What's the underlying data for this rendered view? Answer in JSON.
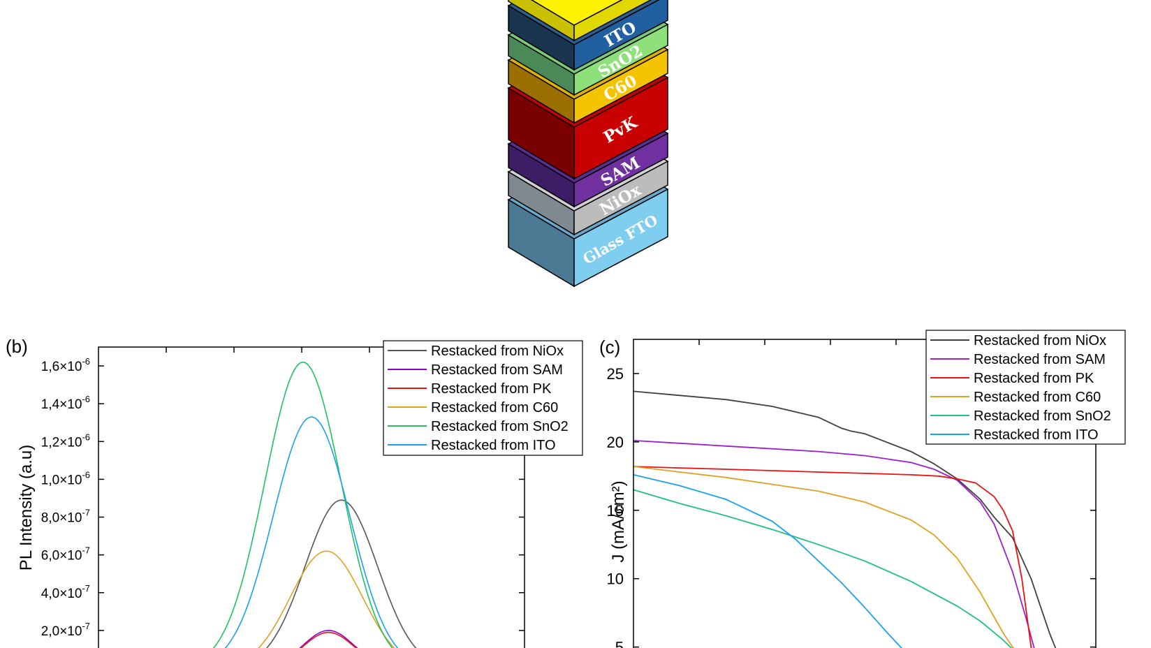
{
  "stack": {
    "layers": [
      {
        "label": "",
        "top": "#fff200",
        "left": "#c8c000",
        "front": "#e0d800"
      },
      {
        "label": "ITO",
        "top": "#2d5f8f",
        "left": "#1a3550",
        "front": "#2060a0"
      },
      {
        "label": "SnO2",
        "top": "#7cc97a",
        "left": "#4b8a58",
        "front": "#8ee07a"
      },
      {
        "label": "C60",
        "top": "#e2b200",
        "left": "#9b7000",
        "front": "#f5c400"
      },
      {
        "label": "PvK",
        "top": "#c40000",
        "left": "#7a0000",
        "front": "#c80000"
      },
      {
        "label": "SAM",
        "top": "#5a2d91",
        "left": "#3c1d66",
        "front": "#7030a0"
      },
      {
        "label": "NiOx",
        "top": "#d0d0d0",
        "left": "#808890",
        "front": "#bcbcbc"
      },
      {
        "label": "Glass FTO",
        "top": "#6aa7c8",
        "left": "#4a7a94",
        "front": "#7fcdef"
      }
    ]
  },
  "panel_b": {
    "label": "(b)"
  },
  "panel_c": {
    "label": "(c)"
  },
  "chart_data": [
    {
      "type": "line",
      "panel": "(b)",
      "ylabel": "PL Intensity (a.u)",
      "xlabel": "",
      "ylim": [
        0,
        1.7e-06
      ],
      "yticks": [
        2e-07,
        4e-07,
        6e-07,
        8e-07,
        1e-06,
        1.2e-06,
        1.4e-06,
        1.6e-06
      ],
      "ytick_labels": [
        {
          "mant": "2,0",
          "exp": "-7"
        },
        {
          "mant": "4,0",
          "exp": "-7"
        },
        {
          "mant": "6,0",
          "exp": "-7"
        },
        {
          "mant": "8,0",
          "exp": "-7"
        },
        {
          "mant": "1,0",
          "exp": "-6"
        },
        {
          "mant": "1,2",
          "exp": "-6"
        },
        {
          "mant": "1,4",
          "exp": "-6"
        },
        {
          "mant": "1,6",
          "exp": "-6"
        }
      ],
      "legend_position": "top-right",
      "series": [
        {
          "name": "Restacked from NiOx",
          "color": "#555555",
          "peak_x": 0.57,
          "peak": 8.9e-07,
          "width": 0.085
        },
        {
          "name": "Restacked from SAM",
          "color": "#8b00d0",
          "peak_x": 0.54,
          "peak": 2e-07,
          "width": 0.06
        },
        {
          "name": "Restacked from PK",
          "color": "#ee1111",
          "peak_x": 0.54,
          "peak": 1.9e-07,
          "width": 0.06
        },
        {
          "name": "Restacked from C60",
          "color": "#e0a020",
          "peak_x": 0.535,
          "peak": 6.2e-07,
          "width": 0.085
        },
        {
          "name": "Restacked from SnO2",
          "color": "#22c060",
          "peak_x": 0.48,
          "peak": 1.62e-06,
          "width": 0.09
        },
        {
          "name": "Restacked from ITO",
          "color": "#1aa0f0",
          "peak_x": 0.5,
          "peak": 1.33e-06,
          "width": 0.09
        }
      ]
    },
    {
      "type": "line",
      "panel": "(c)",
      "ylabel": "J (mA/cm²)",
      "xlabel": "",
      "xlim": [
        0,
        1.0
      ],
      "ylim": [
        3.5,
        27.5
      ],
      "yticks": [
        5,
        10,
        15,
        20,
        25
      ],
      "ytick_labels": [
        "5",
        "10",
        "15",
        "20",
        "25"
      ],
      "legend_position": "top-right",
      "series": [
        {
          "name": "Restacked from NiOx",
          "color": "#404040",
          "x": [
            0.0,
            0.1,
            0.2,
            0.3,
            0.4,
            0.45,
            0.47,
            0.5,
            0.6,
            0.65,
            0.7,
            0.75,
            0.78,
            0.82,
            0.86,
            0.9,
            0.93
          ],
          "y": [
            23.7,
            23.4,
            23.1,
            22.6,
            21.8,
            21.0,
            20.8,
            20.6,
            19.3,
            18.4,
            17.3,
            15.8,
            14.5,
            13.0,
            10.0,
            6.0,
            3.5
          ]
        },
        {
          "name": "Restacked from SAM",
          "color": "#9a20d0",
          "x": [
            0.0,
            0.1,
            0.2,
            0.3,
            0.4,
            0.5,
            0.6,
            0.65,
            0.7,
            0.75,
            0.78,
            0.82,
            0.85,
            0.87,
            0.88
          ],
          "y": [
            20.1,
            19.9,
            19.7,
            19.5,
            19.3,
            19.0,
            18.5,
            18.0,
            17.2,
            15.6,
            14.0,
            10.5,
            7.0,
            4.5,
            3.5
          ]
        },
        {
          "name": "Restacked from PK",
          "color": "#ee1010",
          "x": [
            0.0,
            0.1,
            0.2,
            0.3,
            0.4,
            0.5,
            0.6,
            0.66,
            0.7,
            0.74,
            0.78,
            0.8,
            0.82,
            0.84,
            0.86,
            0.87
          ],
          "y": [
            18.2,
            18.1,
            18.0,
            17.9,
            17.8,
            17.7,
            17.6,
            17.5,
            17.3,
            17.0,
            16.0,
            15.0,
            13.5,
            10.0,
            5.0,
            3.5
          ]
        },
        {
          "name": "Restacked from C60",
          "color": "#e0a020",
          "x": [
            0.0,
            0.1,
            0.2,
            0.3,
            0.4,
            0.5,
            0.6,
            0.65,
            0.7,
            0.75,
            0.8,
            0.83,
            0.86
          ],
          "y": [
            18.2,
            17.8,
            17.4,
            16.9,
            16.4,
            15.6,
            14.3,
            13.2,
            11.5,
            9.0,
            6.0,
            4.5,
            3.5
          ]
        },
        {
          "name": "Restacked from SnO2",
          "color": "#20c080",
          "x": [
            0.0,
            0.1,
            0.2,
            0.3,
            0.4,
            0.5,
            0.6,
            0.7,
            0.75,
            0.8,
            0.83,
            0.86
          ],
          "y": [
            16.5,
            15.5,
            14.6,
            13.6,
            12.5,
            11.3,
            9.8,
            8.0,
            6.9,
            5.5,
            4.5,
            3.5
          ]
        },
        {
          "name": "Restacked from ITO",
          "color": "#1aa0f0",
          "x": [
            0.0,
            0.1,
            0.2,
            0.3,
            0.35,
            0.4,
            0.45,
            0.5,
            0.55,
            0.6,
            0.62
          ],
          "y": [
            17.6,
            16.8,
            15.8,
            14.2,
            12.9,
            11.3,
            9.7,
            7.9,
            6.0,
            4.2,
            3.5
          ]
        }
      ]
    }
  ]
}
